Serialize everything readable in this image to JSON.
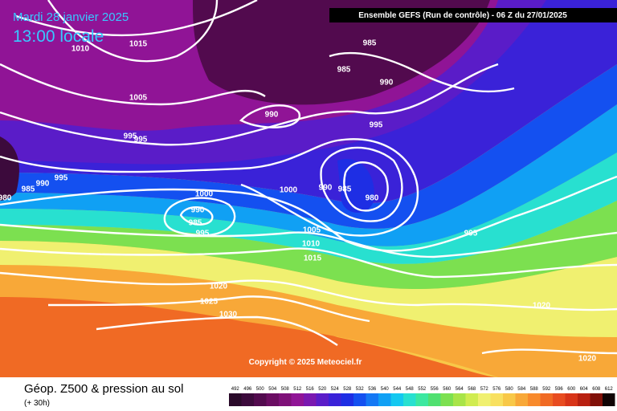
{
  "header": {
    "date": "Mardi 28 janvier 2025",
    "time": "13:00 locale",
    "model": "Ensemble GEFS  (Run de contrôle)  -  06 Z du 27/01/2025"
  },
  "copyright": "Copyright © 2025 Meteociel.fr",
  "footer": {
    "title": "Géop. Z500 & pression au sol",
    "lead": "(+ 30h)"
  },
  "isobar_labels": [
    "1015",
    "1010",
    "1005",
    "995",
    "995",
    "995",
    "990",
    "985",
    "980",
    "985",
    "985",
    "990",
    "990",
    "995",
    "1000",
    "990",
    "985",
    "995",
    "1000",
    "990",
    "985",
    "980",
    "995",
    "1005",
    "1010",
    "1015",
    "1020",
    "1025",
    "1030",
    "1020",
    "1020"
  ],
  "legend": {
    "values": [
      492,
      496,
      500,
      504,
      508,
      512,
      516,
      520,
      524,
      528,
      532,
      536,
      540,
      544,
      548,
      552,
      556,
      560,
      564,
      568,
      572,
      576,
      580,
      584,
      588,
      592,
      596,
      600,
      604,
      608,
      612
    ],
    "colors": [
      "#2a0a2a",
      "#3c0a3c",
      "#520a4e",
      "#6a0c62",
      "#7e1078",
      "#901496",
      "#7a18b0",
      "#5a1cc8",
      "#3a22d8",
      "#1e2ee4",
      "#1450f0",
      "#1478f4",
      "#10a0f4",
      "#14c8f0",
      "#28e0d0",
      "#3ce8a0",
      "#50e070",
      "#7ce050",
      "#a8e448",
      "#d0ec50",
      "#f0f070",
      "#f8e060",
      "#f8c848",
      "#f8a838",
      "#f88a2c",
      "#f06a24",
      "#e84c20",
      "#d83418",
      "#b82010",
      "#801008",
      "#100404"
    ]
  }
}
